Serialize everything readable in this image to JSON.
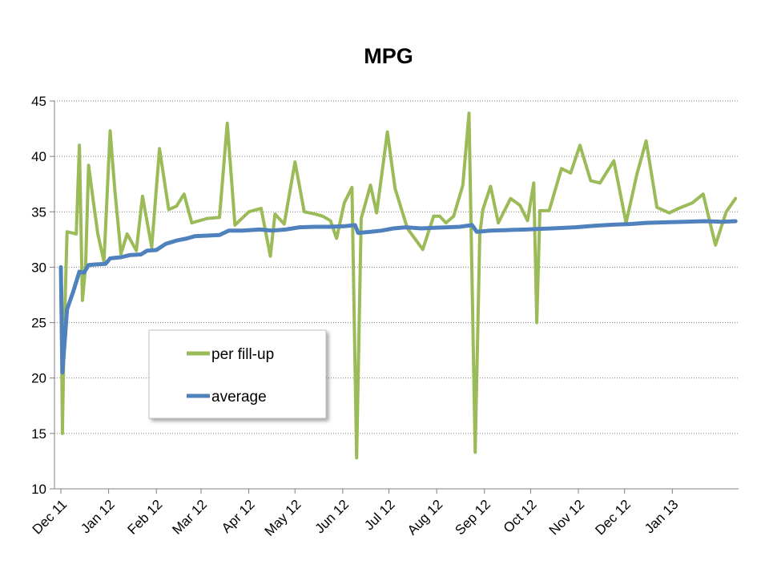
{
  "chart_data": {
    "type": "line",
    "title": "MPG",
    "xlabel": "",
    "ylabel": "",
    "ylim": [
      10,
      45
    ],
    "yticks": [
      10,
      15,
      20,
      25,
      30,
      35,
      40,
      45
    ],
    "grid": "horizontal-dotted",
    "legend": "lower-left inside plot",
    "x_tick_labels": [
      "Dec 11",
      "Jan 12",
      "Feb 12",
      "Mar 12",
      "Apr 12",
      "May 12",
      "Jun 12",
      "Jul 12",
      "Aug 12",
      "Sep 12",
      "Oct 12",
      "Nov 12",
      "Dec 12",
      "Jan 13"
    ],
    "series": [
      {
        "name": "per fill-up",
        "color": "#9BBB59",
        "points": [
          [
            "2011-12-01",
            30.0
          ],
          [
            "2011-12-02",
            15.0
          ],
          [
            "2011-12-03",
            23.0
          ],
          [
            "2011-12-05",
            33.2
          ],
          [
            "2011-12-08",
            33.1
          ],
          [
            "2011-12-11",
            33.0
          ],
          [
            "2011-12-13",
            41.0
          ],
          [
            "2011-12-15",
            27.0
          ],
          [
            "2011-12-17",
            30.0
          ],
          [
            "2011-12-19",
            39.2
          ],
          [
            "2011-12-22",
            36.0
          ],
          [
            "2011-12-25",
            33.0
          ],
          [
            "2011-12-29",
            30.5
          ],
          [
            "2012-01-02",
            42.3
          ],
          [
            "2012-01-05",
            37.0
          ],
          [
            "2012-01-09",
            31.2
          ],
          [
            "2012-01-13",
            33.0
          ],
          [
            "2012-01-19",
            31.5
          ],
          [
            "2012-01-23",
            36.4
          ],
          [
            "2012-01-29",
            31.8
          ],
          [
            "2012-02-03",
            40.7
          ],
          [
            "2012-02-09",
            35.2
          ],
          [
            "2012-02-14",
            35.5
          ],
          [
            "2012-02-19",
            36.6
          ],
          [
            "2012-02-24",
            34.0
          ],
          [
            "2012-03-05",
            34.4
          ],
          [
            "2012-03-13",
            34.5
          ],
          [
            "2012-03-18",
            43.0
          ],
          [
            "2012-03-23",
            33.8
          ],
          [
            "2012-04-01",
            35.0
          ],
          [
            "2012-04-09",
            35.3
          ],
          [
            "2012-04-15",
            31.0
          ],
          [
            "2012-04-18",
            34.8
          ],
          [
            "2012-04-24",
            33.9
          ],
          [
            "2012-05-01",
            39.5
          ],
          [
            "2012-05-07",
            35.0
          ],
          [
            "2012-05-14",
            34.8
          ],
          [
            "2012-05-19",
            34.6
          ],
          [
            "2012-05-24",
            34.2
          ],
          [
            "2012-05-28",
            32.6
          ],
          [
            "2012-06-02",
            35.8
          ],
          [
            "2012-06-07",
            37.2
          ],
          [
            "2012-06-10",
            12.8
          ],
          [
            "2012-06-13",
            34.4
          ],
          [
            "2012-06-19",
            37.4
          ],
          [
            "2012-06-23",
            34.9
          ],
          [
            "2012-06-30",
            42.2
          ],
          [
            "2012-07-05",
            37.1
          ],
          [
            "2012-07-13",
            33.5
          ],
          [
            "2012-07-23",
            31.6
          ],
          [
            "2012-07-30",
            34.6
          ],
          [
            "2012-08-03",
            34.6
          ],
          [
            "2012-08-07",
            34.0
          ],
          [
            "2012-08-12",
            34.6
          ],
          [
            "2012-08-18",
            37.4
          ],
          [
            "2012-08-22",
            43.9
          ],
          [
            "2012-08-26",
            13.3
          ],
          [
            "2012-08-29",
            33.0
          ],
          [
            "2012-08-31",
            35.2
          ],
          [
            "2012-09-05",
            37.3
          ],
          [
            "2012-09-10",
            34.0
          ],
          [
            "2012-09-18",
            36.2
          ],
          [
            "2012-09-24",
            35.6
          ],
          [
            "2012-09-29",
            34.2
          ],
          [
            "2012-10-03",
            37.6
          ],
          [
            "2012-10-05",
            25.0
          ],
          [
            "2012-10-07",
            35.1
          ],
          [
            "2012-10-13",
            35.1
          ],
          [
            "2012-10-21",
            38.9
          ],
          [
            "2012-10-27",
            38.5
          ],
          [
            "2012-11-02",
            41.0
          ],
          [
            "2012-11-09",
            37.8
          ],
          [
            "2012-11-15",
            37.6
          ],
          [
            "2012-11-24",
            39.6
          ],
          [
            "2012-12-02",
            34.0
          ],
          [
            "2012-12-09",
            38.4
          ],
          [
            "2012-12-15",
            41.4
          ],
          [
            "2012-12-22",
            35.4
          ],
          [
            "2012-12-30",
            34.9
          ],
          [
            "2013-01-05",
            35.3
          ],
          [
            "2013-01-14",
            35.8
          ],
          [
            "2013-01-21",
            36.6
          ],
          [
            "2013-01-29",
            32.0
          ],
          [
            "2013-02-05",
            35.0
          ],
          [
            "2013-02-11",
            36.2
          ]
        ]
      },
      {
        "name": "average",
        "color": "#4F81BD",
        "points": [
          [
            "2011-12-01",
            30.0
          ],
          [
            "2011-12-02",
            20.5
          ],
          [
            "2011-12-05",
            26.2
          ],
          [
            "2011-12-09",
            27.8
          ],
          [
            "2011-12-13",
            29.6
          ],
          [
            "2011-12-16",
            29.5
          ],
          [
            "2011-12-19",
            30.2
          ],
          [
            "2011-12-23",
            30.25
          ],
          [
            "2011-12-30",
            30.3
          ],
          [
            "2012-01-02",
            30.8
          ],
          [
            "2012-01-09",
            30.9
          ],
          [
            "2012-01-15",
            31.1
          ],
          [
            "2012-01-22",
            31.15
          ],
          [
            "2012-01-26",
            31.5
          ],
          [
            "2012-02-01",
            31.55
          ],
          [
            "2012-02-07",
            32.1
          ],
          [
            "2012-02-14",
            32.4
          ],
          [
            "2012-02-21",
            32.6
          ],
          [
            "2012-02-26",
            32.8
          ],
          [
            "2012-03-05",
            32.85
          ],
          [
            "2012-03-13",
            32.9
          ],
          [
            "2012-03-19",
            33.3
          ],
          [
            "2012-03-28",
            33.3
          ],
          [
            "2012-04-08",
            33.4
          ],
          [
            "2012-04-16",
            33.3
          ],
          [
            "2012-04-25",
            33.4
          ],
          [
            "2012-05-04",
            33.6
          ],
          [
            "2012-05-14",
            33.65
          ],
          [
            "2012-05-24",
            33.65
          ],
          [
            "2012-06-02",
            33.7
          ],
          [
            "2012-06-09",
            33.8
          ],
          [
            "2012-06-11",
            33.1
          ],
          [
            "2012-06-19",
            33.2
          ],
          [
            "2012-06-26",
            33.3
          ],
          [
            "2012-07-04",
            33.5
          ],
          [
            "2012-07-12",
            33.6
          ],
          [
            "2012-07-22",
            33.5
          ],
          [
            "2012-07-30",
            33.55
          ],
          [
            "2012-08-08",
            33.6
          ],
          [
            "2012-08-16",
            33.65
          ],
          [
            "2012-08-24",
            33.8
          ],
          [
            "2012-08-27",
            33.2
          ],
          [
            "2012-09-05",
            33.3
          ],
          [
            "2012-09-16",
            33.35
          ],
          [
            "2012-09-28",
            33.4
          ],
          [
            "2012-10-05",
            33.45
          ],
          [
            "2012-10-15",
            33.5
          ],
          [
            "2012-10-30",
            33.6
          ],
          [
            "2012-11-12",
            33.75
          ],
          [
            "2012-11-25",
            33.85
          ],
          [
            "2012-12-05",
            33.9
          ],
          [
            "2012-12-15",
            34.0
          ],
          [
            "2012-12-28",
            34.05
          ],
          [
            "2013-01-09",
            34.1
          ],
          [
            "2013-01-22",
            34.15
          ],
          [
            "2013-02-02",
            34.1
          ],
          [
            "2013-02-11",
            34.15
          ]
        ]
      }
    ]
  }
}
